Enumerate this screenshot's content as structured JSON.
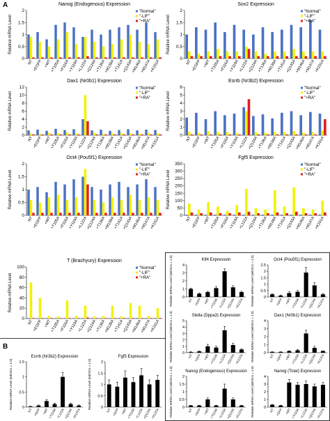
{
  "panels": [
    "A",
    "B"
  ],
  "chart_data": [
    {
      "type": "bar",
      "title": "Nanog (Endogenous) Expression",
      "ylabel": "Relative mRNA Level",
      "categories": [
        "NT",
        "+EGFP",
        "+WT",
        "+T105A",
        "+F116A",
        "+Y119A",
        "+L122A",
        "+Q124A",
        "+T136A",
        "+M139A",
        "+T141A",
        "+Q143A",
        "+M146A",
        "+M147A",
        "+K151A"
      ],
      "series": [
        {
          "name": "\"Normal\"",
          "color": "#4a72c4",
          "values": [
            1.0,
            1.1,
            0.8,
            1.4,
            1.5,
            1.3,
            0.9,
            1.2,
            1.0,
            1.2,
            1.3,
            1.4,
            1.2,
            1.5,
            1.1
          ]
        },
        {
          "name": "\"-LIF\"",
          "color": "#f2f200",
          "values": [
            0.9,
            0.7,
            0.5,
            0.8,
            1.1,
            0.6,
            0.9,
            0.7,
            0.5,
            0.6,
            0.8,
            1.0,
            0.7,
            0.6,
            0.8
          ]
        },
        {
          "name": "\"+RA\"",
          "color": "#e02020",
          "values": [
            0.05,
            0.05,
            0.05,
            0.05,
            0.05,
            0.05,
            0.1,
            0.05,
            0.05,
            0.05,
            0.05,
            0.05,
            0.05,
            0.05,
            0.05
          ]
        }
      ],
      "ylim": [
        0,
        2
      ],
      "yticks": [
        0,
        0.5,
        1,
        1.5,
        2
      ]
    },
    {
      "type": "bar",
      "title": "Sox2 Expression",
      "ylabel": "Relative mRNA Level",
      "categories": [
        "NT",
        "+EGFP",
        "+WT",
        "+T105A",
        "+F116A",
        "+Y119A",
        "+L122A",
        "+Q124A",
        "+T136A",
        "+M139A",
        "+T141A",
        "+Q143A",
        "+M146A",
        "+M147A",
        "+K151A"
      ],
      "series": [
        {
          "name": "\"Normal\"",
          "color": "#4a72c4",
          "values": [
            1.0,
            1.3,
            1.2,
            1.5,
            1.1,
            1.4,
            1.2,
            1.0,
            1.3,
            1.1,
            1.2,
            1.4,
            1.3,
            1.6,
            1.2
          ]
        },
        {
          "name": "\"-LIF\"",
          "color": "#f2f200",
          "values": [
            0.3,
            0.2,
            0.3,
            0.4,
            0.3,
            0.3,
            0.5,
            0.3,
            0.2,
            0.3,
            0.3,
            0.4,
            0.3,
            0.3,
            0.3
          ]
        },
        {
          "name": "\"+RA\"",
          "color": "#e02020",
          "values": [
            0.1,
            0.1,
            0.1,
            0.1,
            0.1,
            0.1,
            0.4,
            0.1,
            0.1,
            0.1,
            0.1,
            0.1,
            0.1,
            0.1,
            0.1
          ]
        }
      ],
      "ylim": [
        0,
        2
      ],
      "yticks": [
        0,
        0.5,
        1,
        1.5,
        2
      ]
    },
    {
      "type": "bar",
      "title": "Dax1 (Nr0b1) Expression",
      "ylabel": "Relative mRNA Level",
      "categories": [
        "NT",
        "+EGFP",
        "+WT",
        "+T105A",
        "+F116A",
        "+Y119A",
        "+L122A",
        "+Q124A",
        "+T136A",
        "+M139A",
        "+T141A",
        "+Q143A",
        "+M146A",
        "+M147A",
        "+K151A"
      ],
      "series": [
        {
          "name": "\"Normal\"",
          "color": "#4a72c4",
          "values": [
            1.2,
            1.4,
            1.1,
            1.6,
            1.3,
            1.5,
            4.0,
            1.2,
            1.4,
            1.1,
            1.3,
            1.5,
            1.2,
            1.4,
            1.3
          ]
        },
        {
          "name": "\"-LIF\"",
          "color": "#f2f200",
          "values": [
            0.5,
            0.4,
            0.6,
            0.5,
            0.7,
            0.5,
            10.0,
            0.6,
            0.4,
            0.5,
            0.6,
            0.5,
            0.4,
            0.6,
            0.5
          ]
        },
        {
          "name": "\"+RA\"",
          "color": "#e02020",
          "values": [
            0.2,
            0.2,
            0.2,
            0.2,
            0.2,
            0.2,
            3.5,
            0.2,
            0.2,
            0.2,
            0.2,
            0.2,
            0.2,
            0.2,
            0.2
          ]
        }
      ],
      "ylim": [
        0,
        12
      ],
      "yticks": [
        0,
        2,
        4,
        6,
        8,
        10,
        12
      ]
    },
    {
      "type": "bar",
      "title": "Esrrb (Nr3b2) Expression",
      "ylabel": "Relative mRNA Level",
      "categories": [
        "NT",
        "+EGFP",
        "+WT",
        "+T105A",
        "+F116A",
        "+Y119A",
        "+L122A",
        "+Q124A",
        "+T136A",
        "+M139A",
        "+T141A",
        "+Q143A",
        "+M146A",
        "+M147A",
        "+K151A"
      ],
      "series": [
        {
          "name": "\"Normal\"",
          "color": "#4a72c4",
          "values": [
            2.2,
            2.8,
            2.0,
            3.0,
            2.5,
            2.7,
            3.5,
            2.4,
            2.6,
            2.1,
            2.8,
            3.0,
            2.5,
            2.9,
            2.7
          ]
        },
        {
          "name": "\"-LIF\"",
          "color": "#f2f200",
          "values": [
            0.4,
            0.3,
            0.5,
            0.4,
            0.4,
            0.3,
            3.0,
            0.4,
            0.3,
            0.4,
            0.4,
            0.5,
            0.3,
            0.4,
            0.6
          ]
        },
        {
          "name": "\"+RA\"",
          "color": "#e02020",
          "values": [
            0.1,
            0.1,
            0.1,
            0.1,
            0.1,
            0.1,
            4.5,
            0.1,
            0.1,
            0.1,
            0.1,
            0.1,
            0.1,
            0.1,
            2.0
          ]
        }
      ],
      "ylim": [
        0,
        6
      ],
      "yticks": [
        0,
        1,
        2,
        3,
        4,
        5,
        6
      ]
    },
    {
      "type": "bar",
      "title": "Oct4 (Pou5f1) Expression",
      "ylabel": "Relative mRNA Level",
      "categories": [
        "NT",
        "+EGFP",
        "+WT",
        "+T105A",
        "+F116A",
        "+Y119A",
        "+L122A",
        "+Q124A",
        "+T136A",
        "+M139A",
        "+T141A",
        "+Q143A",
        "+M146A",
        "+M147A",
        "+K151A"
      ],
      "series": [
        {
          "name": "\"Normal\"",
          "color": "#4a72c4",
          "values": [
            1.0,
            1.1,
            0.9,
            1.3,
            1.2,
            1.4,
            1.5,
            1.1,
            1.0,
            1.2,
            1.3,
            1.1,
            1.2,
            1.4,
            1.1
          ]
        },
        {
          "name": "\"-LIF\"",
          "color": "#f2f200",
          "values": [
            0.6,
            0.5,
            0.7,
            0.8,
            0.6,
            0.7,
            1.8,
            0.6,
            0.5,
            0.7,
            0.6,
            0.8,
            0.6,
            0.7,
            0.6
          ]
        },
        {
          "name": "\"+RA\"",
          "color": "#e02020",
          "values": [
            0.1,
            0.1,
            0.1,
            0.1,
            0.1,
            0.1,
            1.2,
            0.1,
            0.1,
            0.1,
            0.1,
            0.1,
            0.1,
            0.1,
            0.1
          ]
        }
      ],
      "ylim": [
        0,
        2
      ],
      "yticks": [
        0,
        0.5,
        1,
        1.5,
        2
      ]
    },
    {
      "type": "bar",
      "title": "Fgf5 Expression",
      "ylabel": "Relative mRNA Level",
      "categories": [
        "NT",
        "+EGFP",
        "+WT",
        "+T105A",
        "+F116A",
        "+Y119A",
        "+L122A",
        "+Q124A",
        "+T136A",
        "+M139A",
        "+T141A",
        "+Q143A",
        "+M146A",
        "+M147A",
        "+K151A"
      ],
      "series": [
        {
          "name": "\"Normal\"",
          "color": "#4a72c4",
          "values": [
            5,
            5,
            5,
            5,
            5,
            5,
            5,
            5,
            5,
            5,
            5,
            5,
            5,
            5,
            5
          ]
        },
        {
          "name": "\"-LIF\"",
          "color": "#f2f200",
          "values": [
            80,
            40,
            90,
            60,
            30,
            70,
            180,
            50,
            40,
            170,
            60,
            190,
            50,
            40,
            100
          ]
        },
        {
          "name": "\"+RA\"",
          "color": "#e02020",
          "values": [
            20,
            15,
            20,
            15,
            15,
            20,
            25,
            15,
            15,
            20,
            15,
            25,
            15,
            15,
            20
          ]
        }
      ],
      "ylim": [
        0,
        350
      ],
      "yticks": [
        0,
        50,
        100,
        150,
        200,
        250,
        300,
        350
      ]
    },
    {
      "type": "bar",
      "title": "T (Brachyury) Expression",
      "ylabel": "Relative mRNA Level",
      "categories": [
        "NT",
        "+EGFP",
        "+WT",
        "+T105A",
        "+F116A",
        "+Y119A",
        "+L122A",
        "+Q124A",
        "+T136A",
        "+M139A",
        "+T141A",
        "+Q143A",
        "+M146A",
        "+M147A",
        "+K151A"
      ],
      "series": [
        {
          "name": "\"Normal\"",
          "color": "#4a72c4",
          "values": [
            1,
            1,
            1,
            1,
            1,
            1,
            1,
            1,
            1,
            1,
            1,
            1,
            1,
            1,
            1
          ]
        },
        {
          "name": "\"-LIF\"",
          "color": "#f2f200",
          "values": [
            70,
            40,
            5,
            4,
            35,
            5,
            25,
            4,
            5,
            25,
            4,
            30,
            25,
            5,
            20
          ]
        },
        {
          "name": "\"+RA\"",
          "color": "#e02020",
          "values": [
            1,
            1,
            1,
            1,
            1,
            1,
            2,
            1,
            1,
            1,
            1,
            1,
            1,
            1,
            1
          ]
        }
      ],
      "ylim": [
        0,
        100
      ],
      "yticks": [
        0,
        20,
        40,
        60,
        80,
        100
      ]
    },
    {
      "type": "bar",
      "title": "Klf4 Expression",
      "ylabel": "Relative mRNA Level (mESCs = 1.0)",
      "categories": [
        "NT",
        "+GFP",
        "+WT",
        "+Y119A",
        "+L122A",
        "+Q124A",
        "+K137A"
      ],
      "series": [
        {
          "color": "#000000",
          "values": [
            1,
            0.4,
            0.6,
            1.1,
            3.2,
            1.2,
            0.6
          ],
          "errors": [
            0.1,
            0.1,
            0.1,
            0.2,
            0.3,
            0.2,
            0.1
          ]
        }
      ],
      "ylim": [
        0,
        4
      ],
      "yticks": [
        0,
        1,
        2,
        3,
        4
      ]
    },
    {
      "type": "bar",
      "title": "Oct4 (Pou5f1) Expression",
      "ylabel": "Relative mRNA Level (mESCs = 1.0)",
      "categories": [
        "NT",
        "+GFP",
        "+WT",
        "+Y119A",
        "+L122A",
        "+Q124A",
        "+K137A"
      ],
      "series": [
        {
          "color": "#000000",
          "values": [
            0.2,
            0.1,
            0.3,
            0.4,
            1.9,
            0.9,
            0.2
          ],
          "errors": [
            0.05,
            0.05,
            0.1,
            0.1,
            0.4,
            0.2,
            0.05
          ]
        }
      ],
      "ylim": [
        0,
        2.5
      ],
      "yticks": [
        0,
        0.5,
        1,
        1.5,
        2,
        2.5
      ]
    },
    {
      "type": "bar",
      "title": "Stella (Dppa3) Expression",
      "ylabel": "Relative mRNA Level (mESCs = 1.0)",
      "categories": [
        "NT",
        "+GFP",
        "+WT",
        "+Y119A",
        "+L122A",
        "+Q124A",
        "+K137A"
      ],
      "series": [
        {
          "color": "#000000",
          "values": [
            0.1,
            0.2,
            1,
            0.8,
            3.5,
            1.2,
            0.5
          ],
          "errors": [
            0.05,
            0.05,
            0.3,
            0.2,
            0.6,
            0.3,
            0.1
          ]
        }
      ],
      "ylim": [
        0,
        5
      ],
      "yticks": [
        0,
        1,
        2,
        3,
        4,
        5
      ]
    },
    {
      "type": "bar",
      "title": "Dax1 (Nr0b1) Expression",
      "ylabel": "Relative mRNA Level (mESCs = 1.0)",
      "categories": [
        "NT",
        "+GFP",
        "+WT",
        "+Y119A",
        "+L122A",
        "+Q124A",
        "+K137A"
      ],
      "series": [
        {
          "color": "#000000",
          "values": [
            0.1,
            0.1,
            0.2,
            0.3,
            2.4,
            0.6,
            0.2
          ],
          "errors": [
            0.02,
            0.02,
            0.05,
            0.1,
            0.4,
            0.2,
            0.05
          ]
        }
      ],
      "ylim": [
        0,
        4
      ],
      "yticks": [
        0,
        1,
        2,
        3,
        4
      ]
    },
    {
      "type": "bar",
      "title": "Nanog (Endogenous) Expression",
      "ylabel": "Relative mRNA Level (mESCs = 1.0)",
      "categories": [
        "NT",
        "+GFP",
        "+WT",
        "+Y119A",
        "+L122A",
        "+Q124A",
        "+K137A"
      ],
      "series": [
        {
          "color": "#000000",
          "values": [
            0.1,
            0.1,
            0.5,
            0.1,
            1.2,
            0.5,
            0.1
          ],
          "errors": [
            0.02,
            0.02,
            0.1,
            0.02,
            0.3,
            0.1,
            0.02
          ]
        }
      ],
      "ylim": [
        0,
        2
      ],
      "yticks": [
        0,
        0.5,
        1,
        1.5,
        2
      ]
    },
    {
      "type": "bar",
      "title": "Nanog (Total) Expression",
      "ylabel": "Relative mRNA Level (mESCs = 1.0)",
      "categories": [
        "NT",
        "+GFP",
        "+WT",
        "+Y119A",
        "+L122A",
        "+Q124A",
        "+K137A"
      ],
      "series": [
        {
          "color": "#000000",
          "values": [
            0.3,
            0.2,
            3.2,
            2.9,
            3,
            2.7,
            2.9
          ],
          "errors": [
            0.05,
            0.05,
            0.4,
            0.3,
            0.4,
            0.3,
            0.3
          ]
        }
      ],
      "ylim": [
        0,
        4
      ],
      "yticks": [
        0,
        1,
        2,
        3,
        4
      ]
    },
    {
      "type": "bar",
      "title": "Esrrb (Nr3b2) Expression",
      "ylabel": "Relative mRNA Level (mESCs = 1.0)",
      "categories": [
        "NT",
        "+GFP",
        "+WT",
        "+Y119A",
        "+L122A",
        "+Q124A",
        "+K137A"
      ],
      "series": [
        {
          "color": "#000000",
          "values": [
            0.02,
            0.05,
            0.2,
            0.1,
            1,
            0.1,
            0.05
          ],
          "errors": [
            0.01,
            0.02,
            0.05,
            0.03,
            0.15,
            0.03,
            0.02
          ]
        }
      ],
      "ylim": [
        0,
        1.5
      ],
      "yticks": [
        0,
        0.5,
        1,
        1.5
      ]
    },
    {
      "type": "bar",
      "title": "Fgf5 Expression",
      "ylabel": "Relative mRNA Level (mESCs = 1.0)",
      "categories": [
        "NT",
        "+GFP",
        "+WT",
        "+Y119A",
        "+L122A",
        "+Q124A",
        "+K137A"
      ],
      "series": [
        {
          "color": "#000000",
          "values": [
            1.0,
            0.9,
            1.3,
            1.1,
            1.4,
            1.0,
            1.2
          ],
          "errors": [
            0.2,
            0.2,
            0.3,
            0.2,
            0.3,
            0.2,
            0.2
          ]
        }
      ],
      "ylim": [
        0,
        2
      ],
      "yticks": [
        0,
        0.5,
        1,
        1.5,
        2
      ]
    }
  ]
}
